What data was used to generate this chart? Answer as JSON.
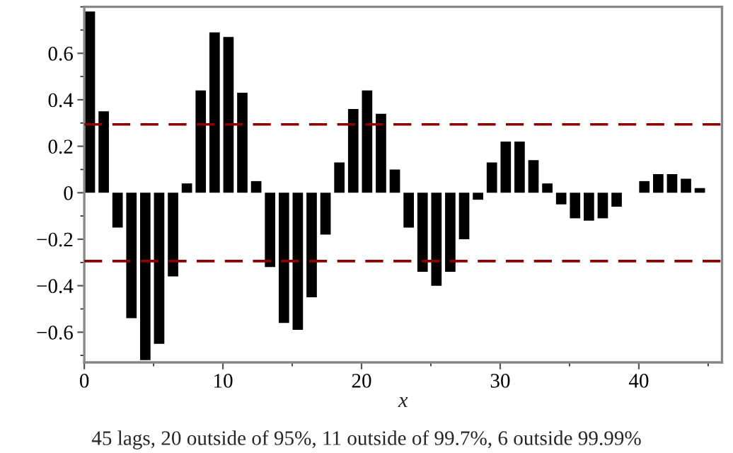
{
  "chart_data": {
    "type": "bar",
    "xlabel": "x",
    "x": [
      0.4,
      1.4,
      2.4,
      3.4,
      4.4,
      5.4,
      6.4,
      7.4,
      8.4,
      9.4,
      10.4,
      11.4,
      12.4,
      13.4,
      14.4,
      15.4,
      16.4,
      17.4,
      18.4,
      19.4,
      20.4,
      21.4,
      22.4,
      23.4,
      24.4,
      25.4,
      26.4,
      27.4,
      28.4,
      29.4,
      30.4,
      31.4,
      32.4,
      33.4,
      34.4,
      35.4,
      36.4,
      37.4,
      38.4,
      39.4,
      40.4,
      41.4,
      42.4,
      43.4,
      44.4
    ],
    "values": [
      0.78,
      0.35,
      -0.15,
      -0.54,
      -0.72,
      -0.65,
      -0.36,
      0.04,
      0.44,
      0.69,
      0.67,
      0.43,
      0.05,
      -0.32,
      -0.56,
      -0.59,
      -0.45,
      -0.18,
      0.13,
      0.36,
      0.44,
      0.34,
      0.1,
      -0.15,
      -0.34,
      -0.4,
      -0.34,
      -0.2,
      -0.03,
      0.13,
      0.22,
      0.22,
      0.14,
      0.04,
      -0.05,
      -0.11,
      -0.12,
      -0.11,
      -0.06,
      0,
      0.05,
      0.08,
      0.08,
      0.06,
      0.02
    ],
    "color": "#000000",
    "xlim": [
      0,
      46
    ],
    "xticks": [
      0,
      10,
      20,
      30,
      40
    ],
    "ylim": [
      -0.73,
      0.8
    ],
    "yticks": [
      {
        "value": -0.6,
        "label": "−0.6"
      },
      {
        "value": -0.4,
        "label": "−0.4"
      },
      {
        "value": -0.2,
        "label": "−0.2"
      },
      0,
      0.2,
      0.4,
      0.6
    ],
    "ref_lines": [
      {
        "axis": "y",
        "value": 0.294,
        "color": "#8b0000",
        "line_style": "dashed"
      },
      {
        "axis": "y",
        "value": -0.294,
        "color": "#8b0000",
        "line_style": "dashed"
      }
    ],
    "annotations": [
      "45 lags, 20 outside of 95%, 11 outside of 99.7%, 6 outside 99.99%"
    ],
    "grid": false,
    "legend": false
  }
}
